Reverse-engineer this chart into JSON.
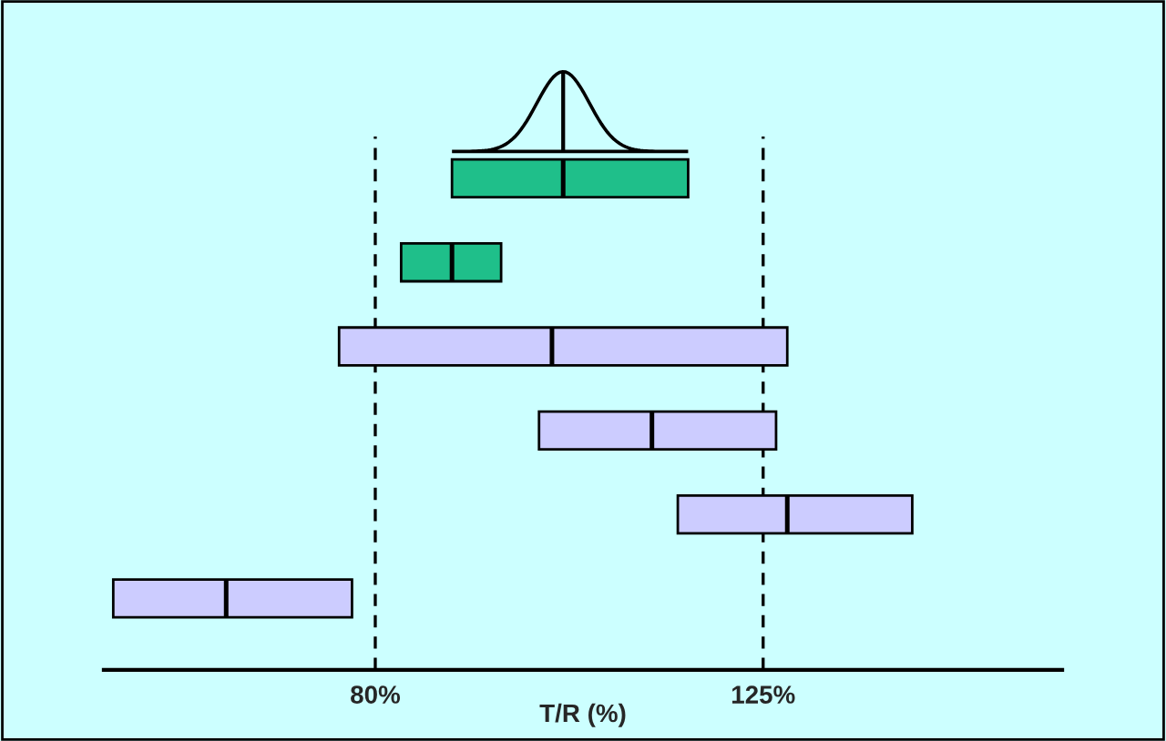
{
  "chart_data": {
    "type": "box",
    "orientation": "horizontal",
    "categories": [
      null,
      null,
      null,
      null,
      null,
      null
    ],
    "boxes": [
      {
        "low": 88.9,
        "q1": 88.9,
        "median": 101.8,
        "q3": 116.3,
        "high": 116.3
      },
      {
        "low": 83.0,
        "q1": 83.0,
        "median": 88.9,
        "q3": 94.6,
        "high": 94.6
      },
      {
        "low": 75.8,
        "q1": 75.8,
        "median": 100.5,
        "q3": 127.8,
        "high": 127.8
      },
      {
        "low": 99.0,
        "q1": 99.0,
        "median": 112.1,
        "q3": 126.5,
        "high": 126.5
      },
      {
        "low": 115.1,
        "q1": 115.1,
        "median": 127.8,
        "q3": 142.3,
        "high": 142.3
      },
      {
        "low": 49.6,
        "q1": 49.6,
        "median": 62.7,
        "q3": 77.3,
        "high": 77.3
      }
    ],
    "colors": [
      "#1fbf8a",
      "#1fbf8a",
      "#ccccff",
      "#ccccff",
      "#ccccff",
      "#ccccff"
    ],
    "xlim": [
      48.5,
      159.7
    ],
    "xticks": [
      {
        "value": 80,
        "label": "80%"
      },
      {
        "value": 125,
        "label": "125%"
      }
    ],
    "xlabel": "T/R (%)",
    "ref_lines": [
      {
        "axis": "x",
        "value": 80,
        "line_style": "dashed",
        "color": "#000000"
      },
      {
        "axis": "x",
        "value": 125,
        "line_style": "dashed",
        "color": "#000000"
      }
    ],
    "tick_labels": "x",
    "grid": false
  }
}
